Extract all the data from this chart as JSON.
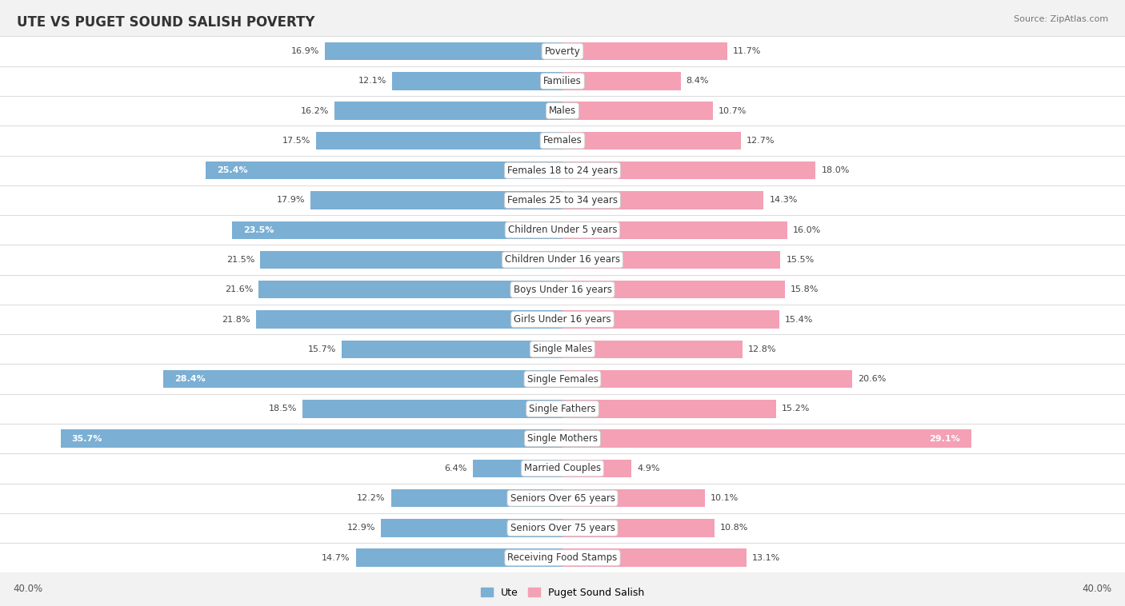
{
  "title": "Ute vs Puget Sound Salish Poverty",
  "source": "Source: ZipAtlas.com",
  "categories": [
    "Poverty",
    "Families",
    "Males",
    "Females",
    "Females 18 to 24 years",
    "Females 25 to 34 years",
    "Children Under 5 years",
    "Children Under 16 years",
    "Boys Under 16 years",
    "Girls Under 16 years",
    "Single Males",
    "Single Females",
    "Single Fathers",
    "Single Mothers",
    "Married Couples",
    "Seniors Over 65 years",
    "Seniors Over 75 years",
    "Receiving Food Stamps"
  ],
  "ute_values": [
    16.9,
    12.1,
    16.2,
    17.5,
    25.4,
    17.9,
    23.5,
    21.5,
    21.6,
    21.8,
    15.7,
    28.4,
    18.5,
    35.7,
    6.4,
    12.2,
    12.9,
    14.7
  ],
  "puget_values": [
    11.7,
    8.4,
    10.7,
    12.7,
    18.0,
    14.3,
    16.0,
    15.5,
    15.8,
    15.4,
    12.8,
    20.6,
    15.2,
    29.1,
    4.9,
    10.1,
    10.8,
    13.1
  ],
  "ute_color": "#7bafd4",
  "puget_color": "#f4a0b5",
  "bg_color": "#f2f2f2",
  "axis_max": 40.0,
  "label_fontsize": 8.5,
  "title_fontsize": 12,
  "value_fontsize": 8,
  "legend_label_ute": "Ute",
  "legend_label_puget": "Puget Sound Salish",
  "inside_threshold_ute": 22,
  "inside_threshold_puget": 22
}
